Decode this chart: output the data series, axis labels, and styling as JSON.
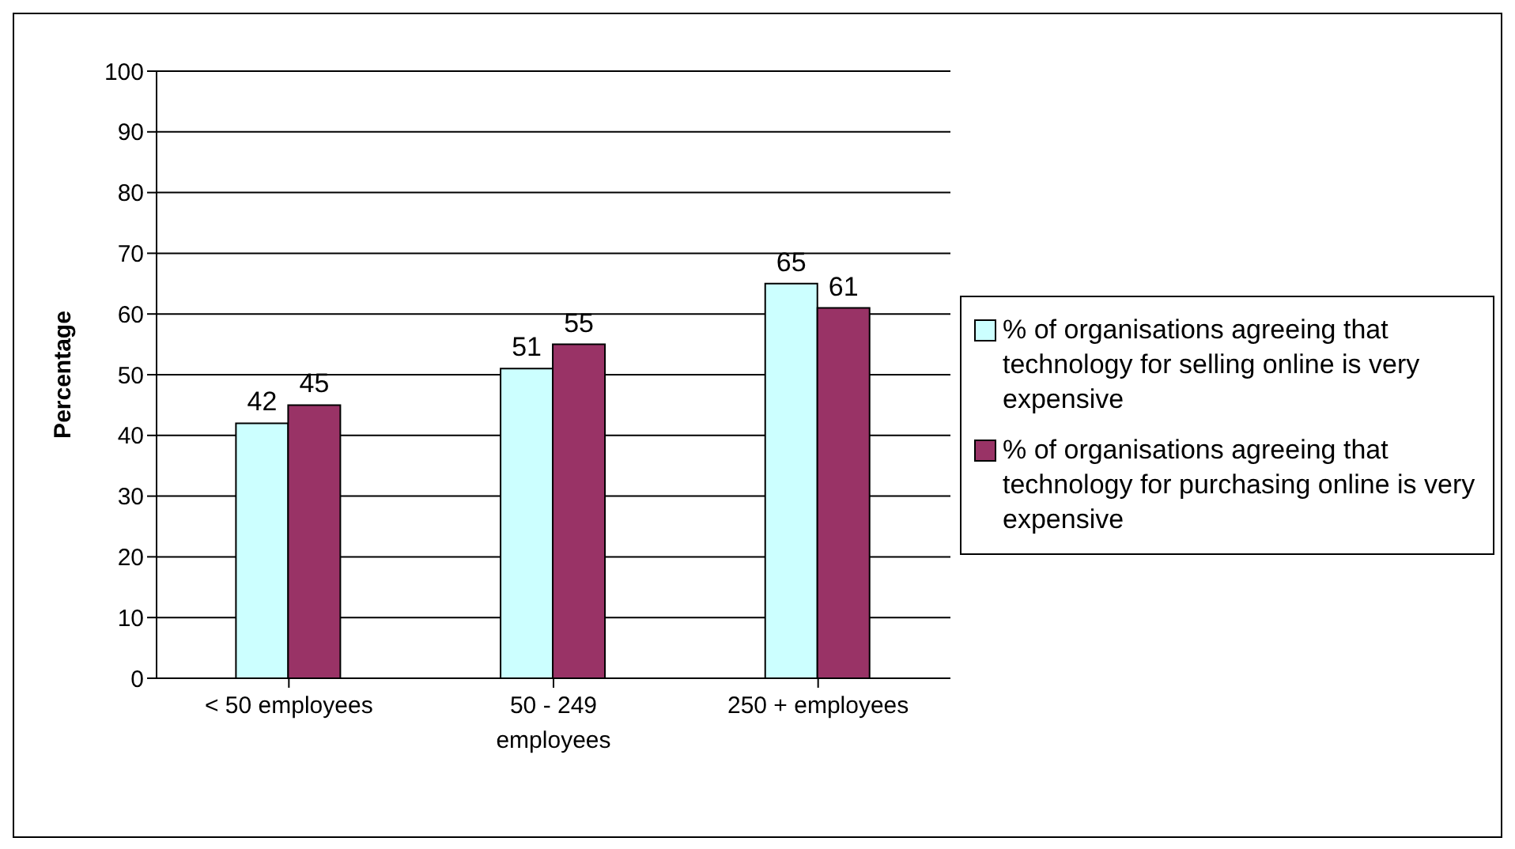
{
  "chart_data": {
    "type": "bar",
    "ylabel": "Percentage",
    "categories": [
      "< 50 employees",
      "50 - 249 employees",
      "250 + employees"
    ],
    "series": [
      {
        "name": "% of organisations agreeing that technology for selling online is very expensive",
        "color": "#ccffff",
        "values": [
          42,
          51,
          65
        ]
      },
      {
        "name": "% of organisations agreeing that technology for purchasing online is very expensive",
        "color": "#993366",
        "values": [
          45,
          55,
          61
        ]
      }
    ],
    "ylim": [
      0,
      100
    ],
    "yticks": [
      0,
      10,
      20,
      30,
      40,
      50,
      60,
      70,
      80,
      90,
      100
    ],
    "grid": "y",
    "legend": "right",
    "data_labels": true
  }
}
